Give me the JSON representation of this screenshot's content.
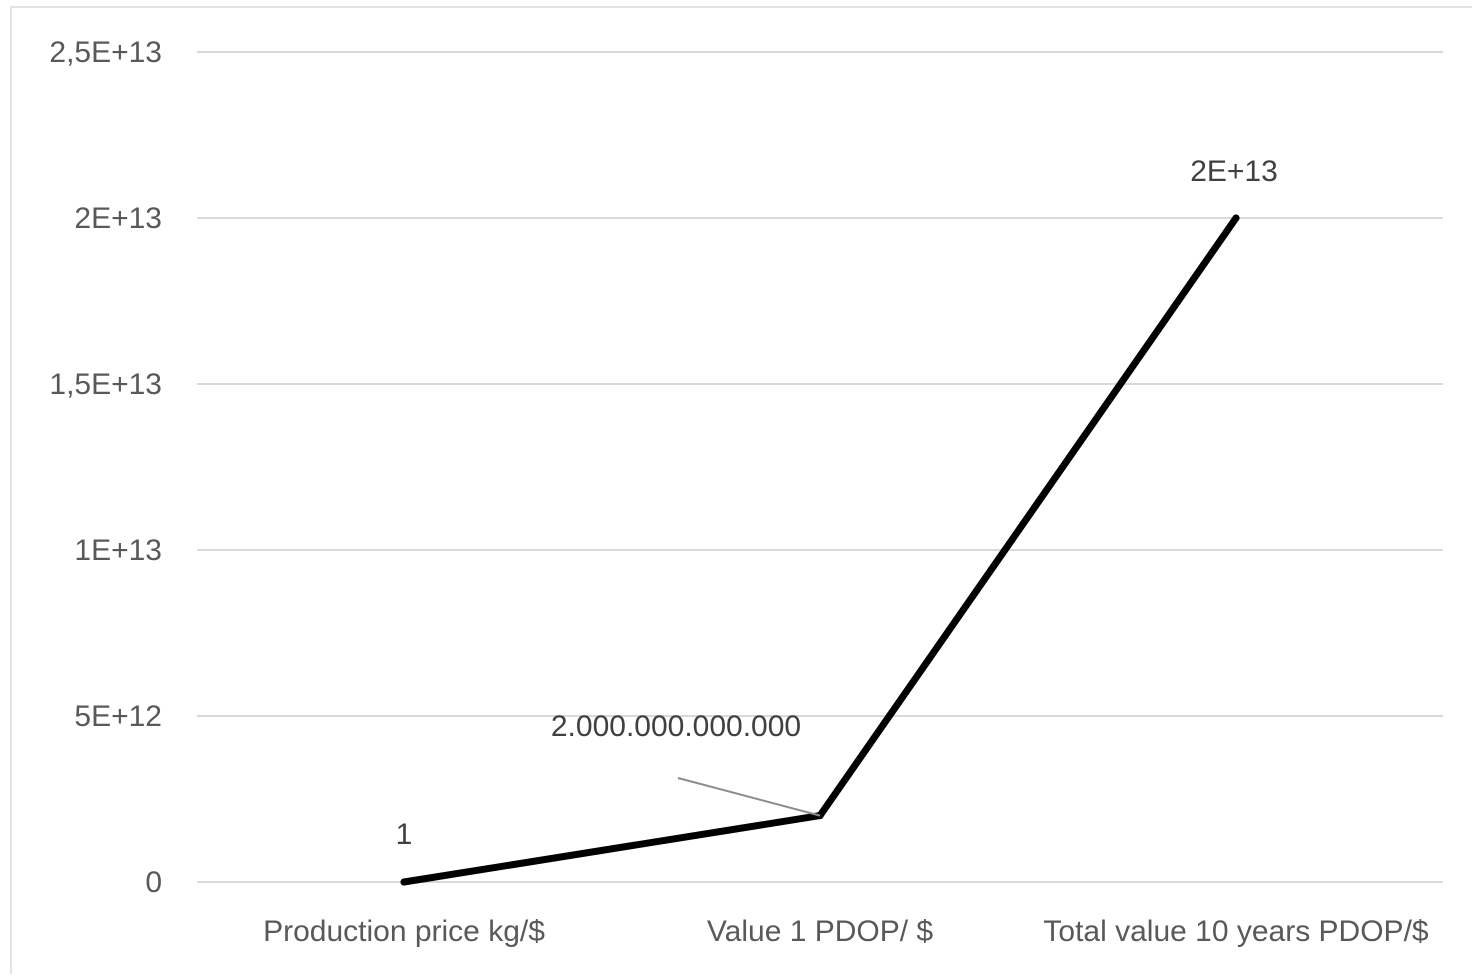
{
  "chart_data": {
    "type": "line",
    "title": "",
    "xlabel": "",
    "ylabel": "",
    "categories": [
      "Production price kg/$",
      "Value 1 PDOP/ $",
      "Total value 10 years PDOP/$"
    ],
    "series": [
      {
        "values": [
          1,
          2000000000000,
          20000000000000
        ],
        "color": "#000000",
        "data_labels": [
          "1",
          "2.000.000.000.000",
          "2E+13"
        ]
      }
    ],
    "ylim": [
      0,
      25000000000000
    ],
    "yticks": [
      0,
      5000000000000,
      10000000000000,
      15000000000000,
      20000000000000,
      25000000000000
    ],
    "ytick_labels": [
      "0",
      "5E+12",
      "1E+13",
      "1,5E+13",
      "2E+13",
      "2,5E+13"
    ],
    "grid": true,
    "legend": "none"
  }
}
